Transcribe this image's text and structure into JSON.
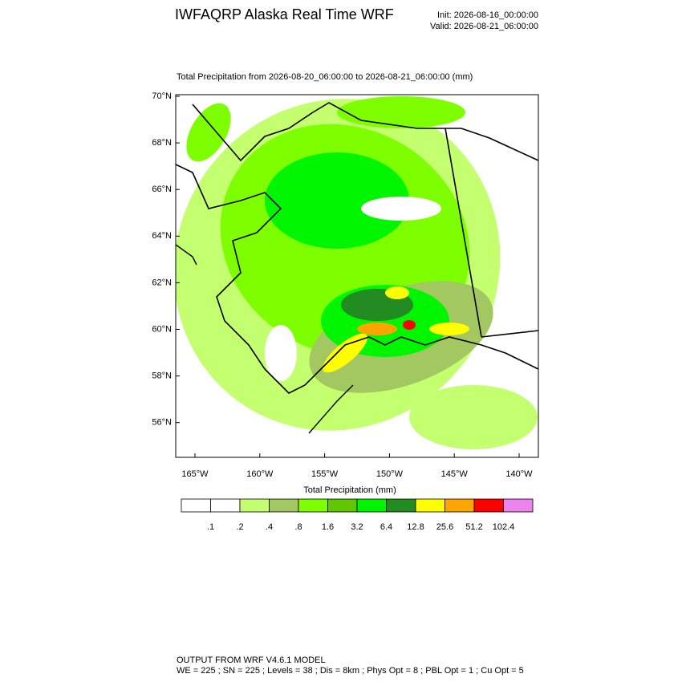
{
  "header": {
    "title": "IWFAQRP Alaska Real Time WRF",
    "init": "Init: 2026-08-16_00:00:00",
    "valid": "Valid: 2026-08-21_06:00:00"
  },
  "map": {
    "subtitle": "Total Precipitation from 2026-08-20_06:00:00 to 2026-08-21_06:00:00   (mm)",
    "lat_labels": [
      "70°N",
      "68°N",
      "66°N",
      "64°N",
      "62°N",
      "60°N",
      "58°N",
      "56°N"
    ],
    "lon_labels": [
      "165°W",
      "160°W",
      "155°W",
      "150°W",
      "145°W",
      "140°W"
    ]
  },
  "colorbar": {
    "title": "Total Precipitation  (mm)",
    "labels": [
      ".1",
      ".2",
      ".4",
      ".8",
      "1.6",
      "3.2",
      "6.4",
      "12.8",
      "25.6",
      "51.2",
      "102.4"
    ],
    "colors": [
      "#ffffff",
      "#ffffff",
      "#c3ff6e",
      "#a3c862",
      "#7dff00",
      "#5fc800",
      "#00f600",
      "#228b22",
      "#ffff00",
      "#ffa500",
      "#ff0000",
      "#ee82ee"
    ]
  },
  "footer": {
    "line1": "OUTPUT FROM WRF V4.6.1 MODEL",
    "line2": "WE = 225 ; SN = 225 ; Levels = 38 ; Dis = 8km ; Phys Opt = 8 ; PBL Opt = 1 ; Cu Opt = 5"
  }
}
